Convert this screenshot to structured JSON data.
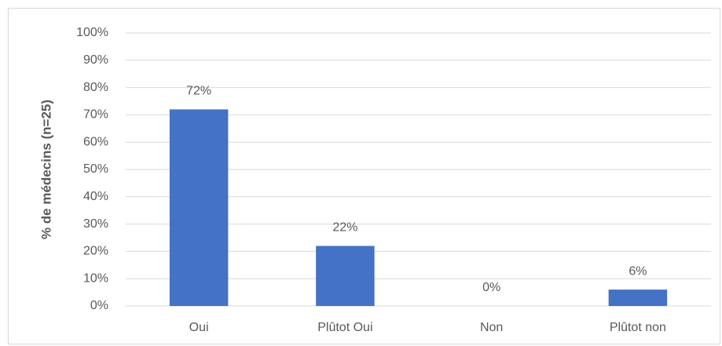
{
  "chart_data": {
    "type": "bar",
    "y_axis_label": "% de médecins (n=25)",
    "categories": [
      "Oui",
      "Plûtot Oui",
      "Non",
      "Plûtot non"
    ],
    "values": [
      72,
      22,
      0,
      6
    ],
    "value_labels": [
      "72%",
      "22%",
      "0%",
      "6%"
    ],
    "color": "#4472c4",
    "ylim": [
      0,
      100
    ],
    "yticks": [
      {
        "value": 0,
        "label": "0%"
      },
      {
        "value": 10,
        "label": "10%"
      },
      {
        "value": 20,
        "label": "20%"
      },
      {
        "value": 30,
        "label": "30%"
      },
      {
        "value": 40,
        "label": "40%"
      },
      {
        "value": 50,
        "label": "50%"
      },
      {
        "value": 60,
        "label": "60%"
      },
      {
        "value": 70,
        "label": "70%"
      },
      {
        "value": 80,
        "label": "80%"
      },
      {
        "value": 90,
        "label": "90%"
      },
      {
        "value": 100,
        "label": "100%"
      }
    ],
    "grid": true
  }
}
